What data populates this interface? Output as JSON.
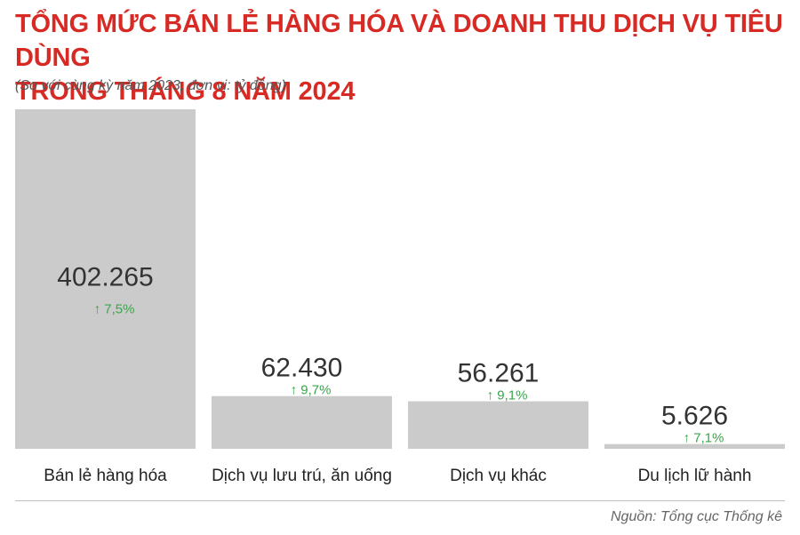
{
  "title_line1": "TỔNG MỨC BÁN LẺ HÀNG HÓA VÀ DOANH THU DỊCH VỤ TIÊU DÙNG",
  "title_line2": "TRONG THÁNG 8 NĂM 2024",
  "subtitle": "(So với cùng kỳ năm 2023, đơn vị: tỷ đồng)",
  "source": "Nguồn: Tổng cục Thống kê",
  "colors": {
    "title": "#d72a24",
    "bar": "#cbcbcb",
    "change": "#39a64a",
    "value": "#333333"
  },
  "chart_data": {
    "type": "bar",
    "categories": [
      "Bán lẻ hàng hóa",
      "Dịch vụ lưu trú, ăn uống",
      "Dịch vụ khác",
      "Du lịch lữ hành"
    ],
    "values": [
      402265,
      62430,
      56261,
      5626
    ],
    "value_labels": [
      "402.265",
      "62.430",
      "56.261",
      "5.626"
    ],
    "change_labels": [
      "7,5%",
      "9,7%",
      "9,1%",
      "7,1%"
    ],
    "change_direction": [
      "up",
      "up",
      "up",
      "up"
    ],
    "title": "TỔNG MỨC BÁN LẺ HÀNG HÓA VÀ DOANH THU DỊCH VỤ TIÊU DÙNG TRONG THÁNG 8 NĂM 2024",
    "xlabel": "",
    "ylabel": "",
    "ylim": [
      0,
      402265
    ],
    "grid": false,
    "legend": "none"
  }
}
